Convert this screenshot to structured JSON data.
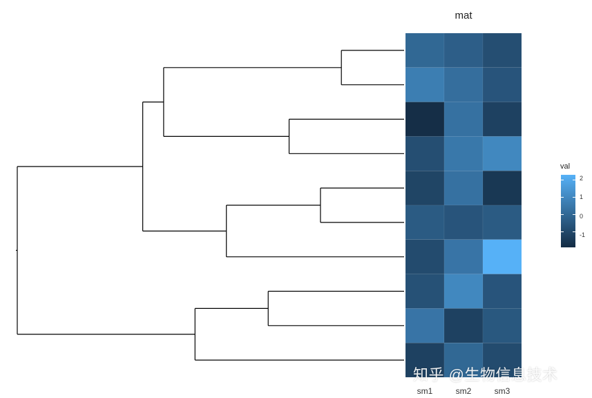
{
  "chart_data": {
    "type": "heatmap",
    "title": "mat",
    "columns": [
      "sm1",
      "sm2",
      "sm3"
    ],
    "values": [
      [
        0.0,
        -0.3,
        -0.8
      ],
      [
        0.7,
        0.2,
        -0.6
      ],
      [
        -1.8,
        0.3,
        -1.2
      ],
      [
        -0.8,
        0.5,
        1.0
      ],
      [
        -1.1,
        0.3,
        -1.5
      ],
      [
        -0.4,
        -0.6,
        -0.4
      ],
      [
        -0.9,
        0.4,
        2.3
      ],
      [
        -0.7,
        1.0,
        -0.6
      ],
      [
        0.4,
        -1.2,
        -0.5
      ],
      [
        -1.2,
        0.0,
        -0.9
      ]
    ],
    "row_dendrogram": {
      "merges": [
        {
          "a": 1,
          "b": 2,
          "height": 0.6
        },
        {
          "a": 3,
          "b": 4,
          "height": 1.1
        },
        {
          "a": 5,
          "b": 6,
          "height": 0.8
        },
        {
          "a": 9,
          "b": 10,
          "height": 1.3
        },
        {
          "a": "m1",
          "b": "m2",
          "height": 2.3
        },
        {
          "a": "m3",
          "b": 7,
          "height": 1.7
        },
        {
          "a": "m5",
          "b": "m6",
          "height": 2.5
        },
        {
          "a": 8,
          "b": "m4",
          "height": 2.0
        },
        {
          "a": "m7",
          "b": "m8",
          "height": 3.7
        }
      ],
      "leaf_order_top_to_bottom": [
        1,
        2,
        3,
        4,
        5,
        6,
        7,
        9,
        10,
        8
      ]
    },
    "legend": {
      "title": "val",
      "ticks": [
        "2",
        "1",
        "0",
        "-1"
      ],
      "tick_values": [
        2,
        1,
        0,
        -1
      ],
      "range": [
        -1.9,
        2.3
      ],
      "low_color": "#132B43",
      "high_color": "#56B1F7",
      "placement": "right"
    }
  },
  "watermark": "知乎 @生物信息技术"
}
